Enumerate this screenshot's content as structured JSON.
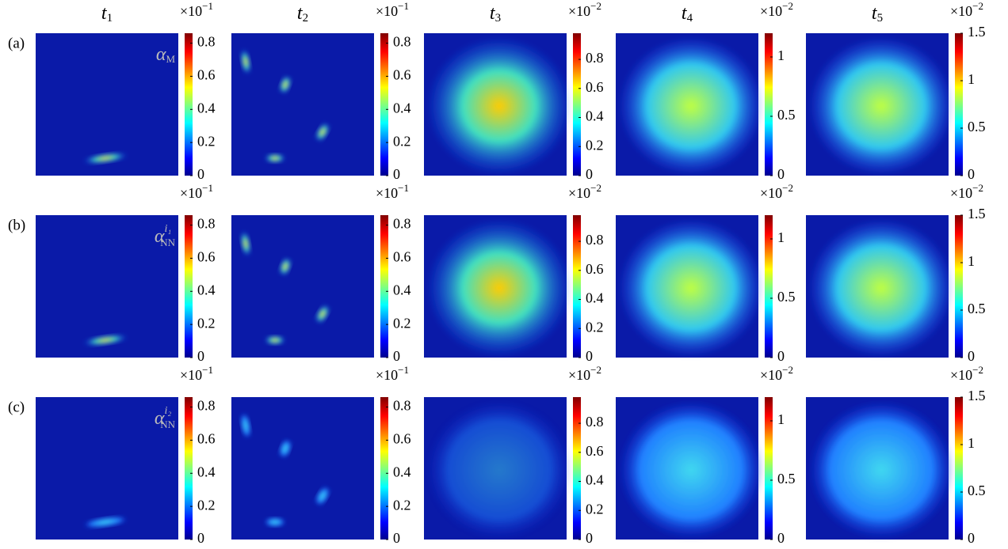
{
  "columns": [
    {
      "base": "t",
      "sub": "1"
    },
    {
      "base": "t",
      "sub": "2"
    },
    {
      "base": "t",
      "sub": "3"
    },
    {
      "base": "t",
      "sub": "4"
    },
    {
      "base": "t",
      "sub": "5"
    }
  ],
  "rows": [
    {
      "label": "(a)",
      "symbol": {
        "base": "α",
        "sub": "M"
      }
    },
    {
      "label": "(b)",
      "symbol": {
        "base": "α",
        "sub": "NN",
        "sup": "i₁"
      }
    },
    {
      "label": "(c)",
      "symbol": {
        "base": "α",
        "sub": "NN",
        "sup": "i₂"
      }
    }
  ],
  "colorbars": [
    {
      "scale": {
        "base": "×10",
        "exp": "−1"
      },
      "lim": [
        0,
        0.86
      ],
      "ticks": [
        0,
        0.2,
        0.4,
        0.6,
        0.8
      ]
    },
    {
      "scale": {
        "base": "×10",
        "exp": "−1"
      },
      "lim": [
        0,
        0.86
      ],
      "ticks": [
        0,
        0.2,
        0.4,
        0.6,
        0.8
      ]
    },
    {
      "scale": {
        "base": "×10",
        "exp": "−2"
      },
      "lim": [
        0,
        0.98
      ],
      "ticks": [
        0,
        0.2,
        0.4,
        0.6,
        0.8
      ]
    },
    {
      "scale": {
        "base": "×10",
        "exp": "−2"
      },
      "lim": [
        0,
        1.2
      ],
      "ticks": [
        0,
        0.5,
        1
      ]
    },
    {
      "scale": {
        "base": "×10",
        "exp": "−2"
      },
      "lim": [
        0,
        1.5
      ],
      "ticks": [
        0,
        0.5,
        1,
        1.5
      ]
    }
  ]
}
